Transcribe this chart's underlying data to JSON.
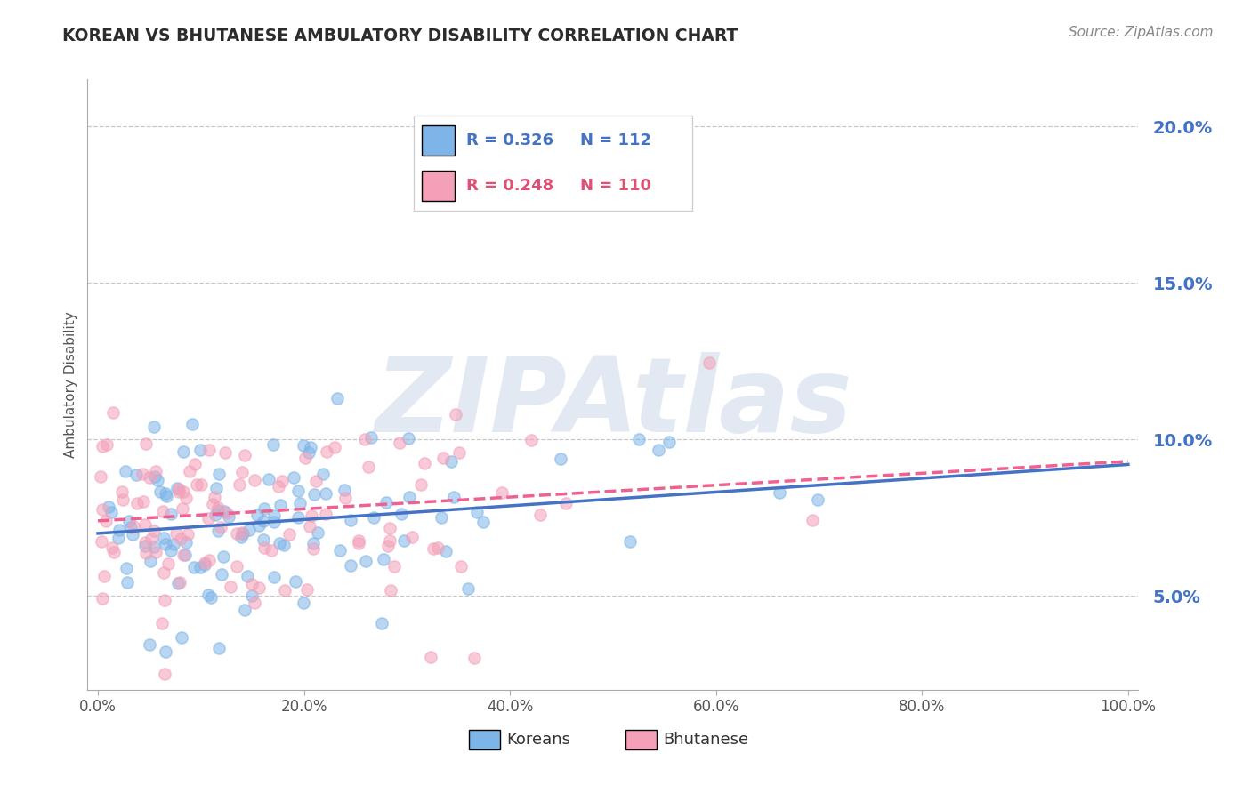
{
  "title": "KOREAN VS BHUTANESE AMBULATORY DISABILITY CORRELATION CHART",
  "source": "Source: ZipAtlas.com",
  "ylabel": "Ambulatory Disability",
  "xlim": [
    -0.01,
    1.01
  ],
  "ylim": [
    0.02,
    0.215
  ],
  "xticks": [
    0.0,
    0.2,
    0.4,
    0.6,
    0.8,
    1.0
  ],
  "xtick_labels": [
    "0.0%",
    "20.0%",
    "40.0%",
    "60.0%",
    "80.0%",
    "100.0%"
  ],
  "yticks": [
    0.05,
    0.1,
    0.15,
    0.2
  ],
  "ytick_labels": [
    "5.0%",
    "10.0%",
    "15.0%",
    "20.0%"
  ],
  "korean_R": 0.326,
  "korean_N": 112,
  "bhutanese_R": 0.248,
  "bhutanese_N": 110,
  "korean_color": "#7EB5E8",
  "bhutanese_color": "#F4A0B8",
  "korean_line_color": "#4472C4",
  "bhutanese_line_color": "#F06090",
  "watermark_text": "ZIPAtlas",
  "watermark_color": "#CDD8E8",
  "legend_label_korean": "Koreans",
  "legend_label_bhutanese": "Bhutanese",
  "background_color": "#FFFFFF",
  "grid_color": "#BBBBBB",
  "title_color": "#2C2C2C",
  "axis_label_color": "#555555",
  "ytick_color": "#4472C4",
  "xtick_color": "#555555",
  "legend_text_color_blue": "#4472C4",
  "legend_text_color_pink": "#E05075",
  "korean_seed": 42,
  "bhutanese_seed": 7,
  "korean_trend_intercept": 0.07,
  "korean_trend_slope": 0.022,
  "bhutanese_trend_intercept": 0.074,
  "bhutanese_trend_slope": 0.019
}
